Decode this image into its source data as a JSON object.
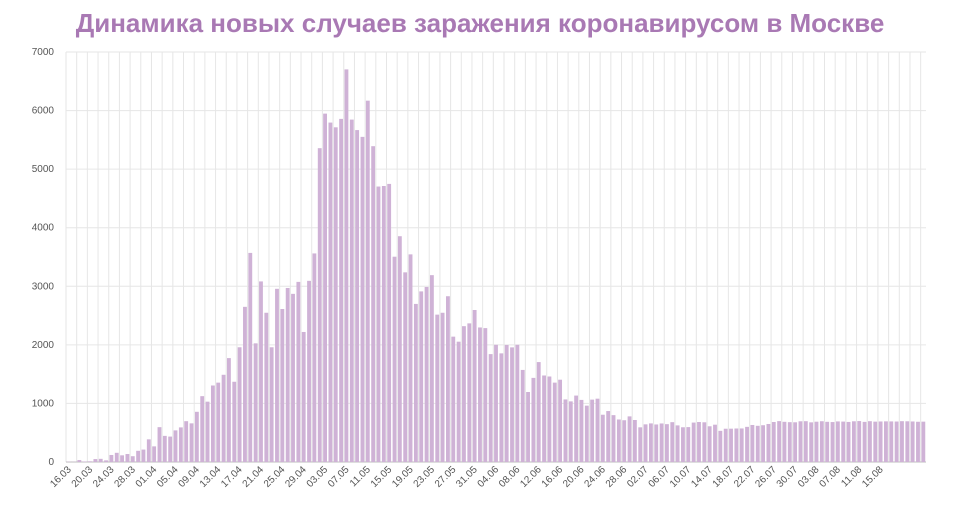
{
  "chart_data": {
    "type": "bar",
    "title": "Динамика новых случаев заражения коронавирусом в Москве",
    "xlabel": "",
    "ylabel": "",
    "ylim": [
      0,
      7000
    ],
    "yticks": [
      0,
      1000,
      2000,
      3000,
      4000,
      5000,
      6000,
      7000
    ],
    "xtick_labels": [
      "16.03",
      "20.03",
      "24.03",
      "28.03",
      "01.04",
      "05.04",
      "09.04",
      "13.04",
      "17.04",
      "21.04",
      "25.04",
      "29.04",
      "03.05",
      "07.05",
      "11.05",
      "15.05",
      "19.05",
      "23.05",
      "27.05",
      "31.05",
      "04.06",
      "08.06",
      "12.06",
      "16.06",
      "20.06",
      "24.06",
      "28.06",
      "02.07",
      "06.07",
      "10.07",
      "14.07",
      "18.07",
      "22.07",
      "26.07",
      "30.07",
      "03.08",
      "07.08",
      "11.08",
      "15.08"
    ],
    "x_start": "16.03",
    "grid": true,
    "legend": "none",
    "bar_color": "#cfb2d6",
    "grid_color": "#e6e6e6",
    "title_color": "#a979b4",
    "values": [
      6,
      3,
      33,
      9,
      12,
      50,
      54,
      28,
      120,
      157,
      114,
      136,
      99,
      191,
      212,
      387,
      267,
      595,
      446,
      434,
      540,
      591,
      697,
      660,
      857,
      1124,
      1030,
      1306,
      1355,
      1489,
      1774,
      1370,
      1959,
      2649,
      3570,
      2026,
      3083,
      2548,
      1959,
      2957,
      2612,
      2971,
      2871,
      3075,
      2220,
      3093,
      3561,
      5358,
      5948,
      5795,
      5714,
      5858,
      6703,
      5846,
      5667,
      5551,
      6169,
      5392,
      4703,
      4712,
      4748,
      3505,
      3855,
      3238,
      3545,
      2699,
      2913,
      2988,
      3190,
      2516,
      2548,
      2830,
      2140,
      2054,
      2319,
      2367,
      2595,
      2297,
      2286,
      1842,
      2001,
      1855,
      1998,
      1957,
      2001,
      1572,
      1195,
      1436,
      1706,
      1477,
      1460,
      1355,
      1405,
      1068,
      1035,
      1134,
      1060,
      962,
      1065,
      1081,
      807,
      870,
      800,
      726,
      713,
      779,
      717,
      592,
      643,
      659,
      641,
      658,
      646,
      680,
      625,
      593,
      596,
      673,
      683,
      678,
      610,
      637,
      532,
      568,
      569,
      572,
      573,
      600,
      632,
      618,
      628,
      649,
      683,
      698,
      686,
      680,
      678,
      695,
      697,
      677,
      688,
      696,
      686,
      682,
      693,
      690,
      684,
      695,
      699,
      685,
      697,
      689,
      692,
      694,
      693,
      691,
      697,
      695,
      692,
      687,
      689
    ]
  }
}
